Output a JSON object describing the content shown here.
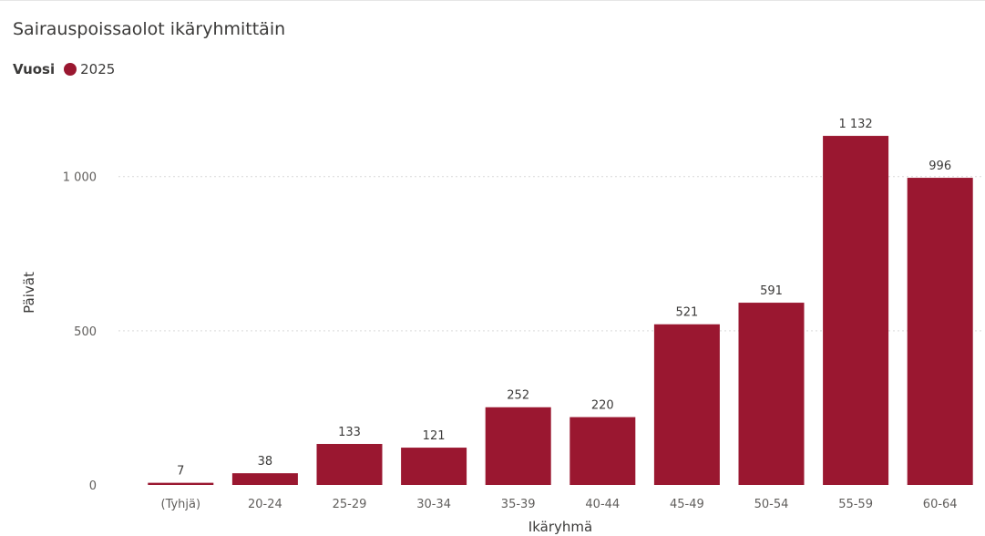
{
  "chart_data": {
    "type": "bar",
    "title": "Sairauspoissaolot ikäryhmittäin",
    "legend": {
      "title": "Vuosi",
      "entries": [
        {
          "label": "2025",
          "color": "#9a1730"
        }
      ],
      "placement": "top-left"
    },
    "categories": [
      "(Tyhjä)",
      "20-24",
      "25-29",
      "30-34",
      "35-39",
      "40-44",
      "45-49",
      "50-54",
      "55-59",
      "60-64"
    ],
    "series": [
      {
        "name": "2025",
        "values": [
          7,
          38,
          133,
          121,
          252,
          220,
          521,
          591,
          1132,
          996
        ],
        "value_labels": [
          "7",
          "38",
          "133",
          "121",
          "252",
          "220",
          "521",
          "591",
          "1 132",
          "996"
        ],
        "color": "#9a1730"
      }
    ],
    "xlabel": "Ikäryhmä",
    "ylabel": "Päivät",
    "ylim": [
      0,
      1200
    ],
    "yticks": [
      0,
      500,
      1000
    ],
    "ytick_labels": [
      "0",
      "500",
      "1 000"
    ],
    "grid": true
  }
}
